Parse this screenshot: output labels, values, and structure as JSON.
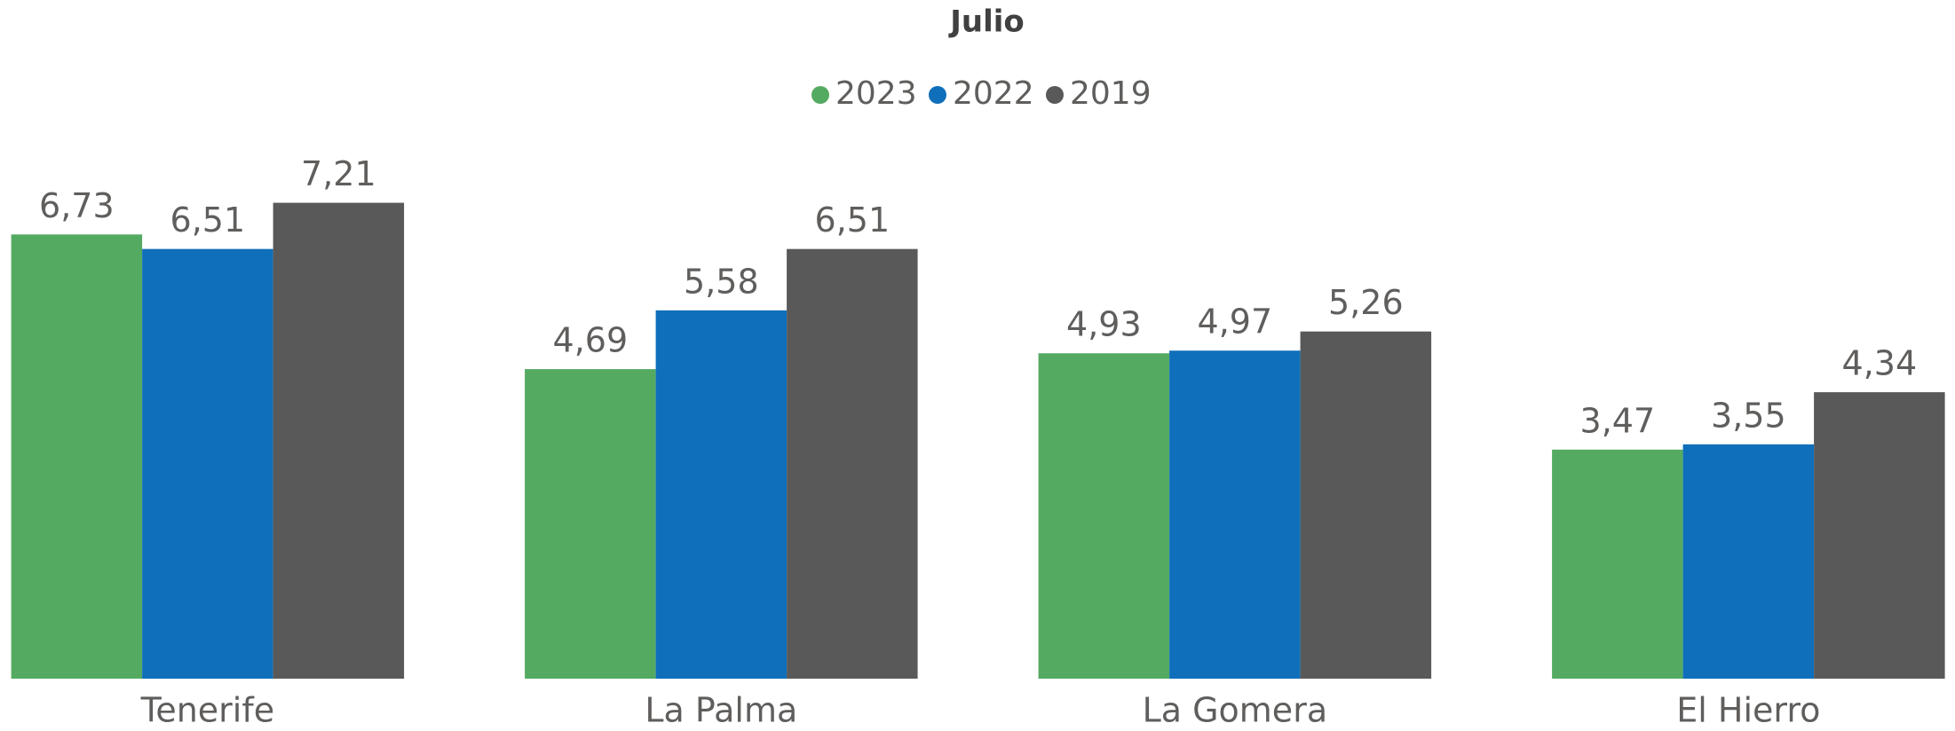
{
  "chart_data": {
    "type": "bar",
    "title": "Julio",
    "categories": [
      "Tenerife",
      "La Palma",
      "La Gomera",
      "El Hierro"
    ],
    "series": [
      {
        "name": "2023",
        "color": "#55aa62",
        "values": [
          6.73,
          4.69,
          4.93,
          3.47
        ],
        "value_labels": [
          "6,73",
          "4,69",
          "4,93",
          "3,47"
        ]
      },
      {
        "name": "2022",
        "color": "#0f6fba",
        "values": [
          6.51,
          5.58,
          4.97,
          3.55
        ],
        "value_labels": [
          "6,51",
          "5,58",
          "4,97",
          "3,55"
        ]
      },
      {
        "name": "2019",
        "color": "#595959",
        "values": [
          7.21,
          6.51,
          5.26,
          4.34
        ],
        "value_labels": [
          "7,21",
          "6,51",
          "5,26",
          "4,34"
        ]
      }
    ],
    "legend": "top"
  }
}
